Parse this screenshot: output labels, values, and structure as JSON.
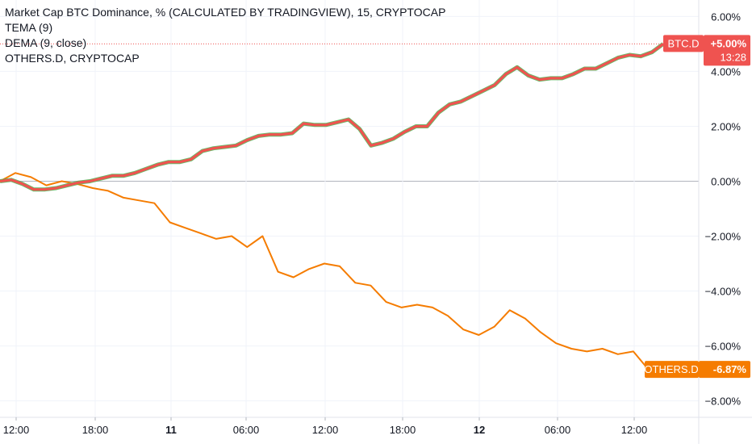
{
  "legend": {
    "title": "Market Cap BTC Dominance, % (CALCULATED BY TRADINGVIEW), 15, CRYPTOCAP",
    "indicators": [
      "TEMA (9)",
      "DEMA (9, close)",
      "OTHERS.D, CRYPTOCAP"
    ]
  },
  "colors": {
    "btc": "#ef5350",
    "btc_inner": "#4caf50",
    "others": "#f57c00",
    "grid": "#f0f3fa",
    "zero": "#b2b5be",
    "text": "#131722",
    "badge_text": "#ffffff"
  },
  "badges": {
    "btc_symbol": "BTC.D",
    "btc_value": "+5.00%",
    "btc_timer": "13:28",
    "others_symbol": "OTHERS.D",
    "others_value": "-6.87%"
  },
  "chart_data": {
    "type": "line",
    "title": "Market Cap BTC Dominance, % (CALCULATED BY TRADINGVIEW), 15, CRYPTOCAP",
    "xlabel": "",
    "ylabel": "",
    "ylim": [
      -8.6,
      6.6
    ],
    "y_ticks": [
      6,
      4,
      2,
      0,
      -2,
      -4,
      -6,
      -8
    ],
    "y_tick_labels": [
      "6.00%",
      "4.00%",
      "2.00%",
      "0.00%",
      "−2.00%",
      "−4.00%",
      "−6.00%",
      "−8.00%"
    ],
    "x_ticks": [
      "12:00",
      "18:00",
      "11",
      "06:00",
      "12:00",
      "18:00",
      "12",
      "06:00",
      "12:00"
    ],
    "grid": true,
    "series": [
      {
        "name": "BTC.D",
        "color": "#ef5350",
        "values": [
          0.0,
          0.05,
          -0.1,
          -0.3,
          -0.3,
          -0.25,
          -0.15,
          -0.05,
          0.0,
          0.1,
          0.2,
          0.2,
          0.3,
          0.45,
          0.6,
          0.7,
          0.7,
          0.8,
          1.1,
          1.2,
          1.25,
          1.3,
          1.5,
          1.65,
          1.7,
          1.7,
          1.75,
          2.1,
          2.05,
          2.05,
          2.15,
          2.25,
          1.9,
          1.3,
          1.4,
          1.55,
          1.8,
          2.0,
          2.0,
          2.5,
          2.8,
          2.9,
          3.1,
          3.3,
          3.5,
          3.9,
          4.15,
          3.85,
          3.7,
          3.75,
          3.75,
          3.9,
          4.1,
          4.1,
          4.3,
          4.5,
          4.6,
          4.55,
          4.7,
          5.0
        ]
      },
      {
        "name": "OTHERS.D",
        "color": "#f57c00",
        "values": [
          0.0,
          0.3,
          0.15,
          -0.15,
          0.0,
          -0.1,
          -0.25,
          -0.35,
          -0.6,
          -0.7,
          -0.8,
          -1.5,
          -1.7,
          -1.9,
          -2.1,
          -2.0,
          -2.4,
          -2.0,
          -3.3,
          -3.5,
          -3.2,
          -3.0,
          -3.1,
          -3.7,
          -3.8,
          -4.4,
          -4.6,
          -4.5,
          -4.6,
          -4.9,
          -5.4,
          -5.6,
          -5.3,
          -4.7,
          -5.0,
          -5.5,
          -5.9,
          -6.1,
          -6.2,
          -6.1,
          -6.3,
          -6.2,
          -6.87
        ]
      }
    ]
  }
}
